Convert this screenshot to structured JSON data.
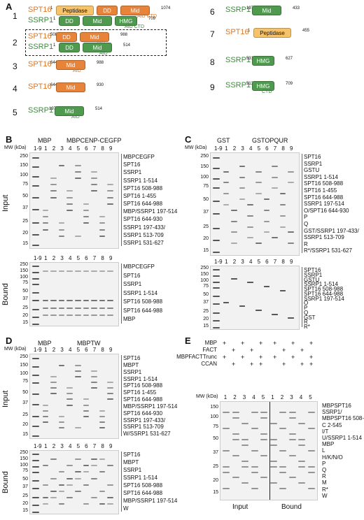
{
  "panels": {
    "a": "A",
    "b": "B",
    "c": "C",
    "d": "D",
    "e": "E"
  },
  "a": {
    "constructs": [
      {
        "n": "1",
        "rows": [
          {
            "name": "SPT16",
            "start": "1",
            "end": "1074",
            "domains": [
              "Peptidase",
              "DD",
              "Mid"
            ],
            "sub": "AID CTD"
          },
          {
            "name": "SSRP1",
            "start": "1",
            "end": "709",
            "domains": [
              "DD",
              "Mid",
              "HMG"
            ],
            "sub": "AID CTD"
          }
        ]
      },
      {
        "n": "2",
        "rows": [
          {
            "name": "SPT16",
            "start": "508",
            "end": "988",
            "domains": [
              "DD",
              "Mid"
            ],
            "sub": "AID"
          },
          {
            "name": "SSRP1",
            "start": "1",
            "end": "514",
            "domains": [
              "DD",
              "Mid"
            ],
            "sub": "AID"
          }
        ]
      },
      {
        "n": "3",
        "rows": [
          {
            "name": "SPT16",
            "start": "644",
            "end": "988",
            "domains": [
              "Mid"
            ],
            "sub": "AID"
          }
        ]
      },
      {
        "n": "4",
        "rows": [
          {
            "name": "SPT16",
            "start": "644",
            "end": "930",
            "domains": [
              "Mid"
            ],
            "sub": ""
          }
        ]
      },
      {
        "n": "5",
        "rows": [
          {
            "name": "SSRP1",
            "start": "197",
            "end": "514",
            "domains": [
              "Mid"
            ],
            "sub": "AID"
          }
        ]
      },
      {
        "n": "6",
        "rows": [
          {
            "name": "SSRP1",
            "start": "197",
            "end": "433",
            "domains": [
              "Mid"
            ],
            "sub": ""
          }
        ]
      },
      {
        "n": "7",
        "rows": [
          {
            "name": "SPT16",
            "start": "1",
            "end": "455",
            "domains": [
              "Peptidase"
            ],
            "sub": ""
          }
        ]
      },
      {
        "n": "8",
        "rows": [
          {
            "name": "SSRP1",
            "start": "531",
            "end": "627",
            "domains": [
              "HMG"
            ],
            "sub": ""
          }
        ]
      },
      {
        "n": "9",
        "rows": [
          {
            "name": "SSRP1",
            "start": "513",
            "end": "709",
            "domains": [
              "HMG"
            ],
            "sub": "CTD"
          }
        ]
      }
    ]
  },
  "gels": {
    "mw": [
      "250",
      "150",
      "100",
      "75",
      "50",
      "37",
      "25",
      "20",
      "15"
    ],
    "lanes": [
      "1-9",
      "1",
      "2",
      "3",
      "4",
      "5",
      "6",
      "7",
      "8",
      "9"
    ],
    "input": "Input",
    "bound": "Bound",
    "mwhead": "MW (kDa)",
    "b": {
      "h1": "MBP",
      "h2": "MBPCENP-CEGFP",
      "input_labels": [
        "MBPCEGFP",
        "SPT16",
        "SSRP1",
        "SSRP1 1-514",
        "SPT16 508-988",
        "SPT16 1-455",
        "SPT16 644-988",
        "MBP/SSRP1 197-514",
        "SPT16 644-930",
        "SSRP1 197-433/",
        "SSRP1 513-709",
        "SSRP1 531-627"
      ],
      "bound_labels": [
        "MBPCEGFP",
        "SPT16",
        "SSRP1",
        "SSRP1 1-514",
        "SPT16 508-988",
        "SPT16 644-988",
        "MBP"
      ]
    },
    "c": {
      "h1": "GST",
      "h2": "GSTOPQUR",
      "input_labels": [
        "SPT16",
        "SSRP1",
        "GSTU",
        "SSRP1 1-514",
        "SPT16 508-988",
        "SPT16 1-455",
        "SPT16 644-988",
        "SSRP1 197-514",
        "O/SPT16 644-930",
        "P",
        "Q",
        "GST/SSRP1 197-433/",
        "SSRP1 513-709",
        "R",
        "R*/SSRP1 531-627"
      ],
      "bound_labels": [
        "SPT16",
        "SSRP1",
        "GSTU",
        "SSRP1 1-514",
        "SPT16 508-988",
        "SPT16 644-988",
        "SSRP1 197-514",
        "O",
        "P",
        "Q",
        "GST",
        "R",
        "R*"
      ]
    },
    "d": {
      "h1": "MBP",
      "h2": "MBPTW",
      "input_labels": [
        "SPT16",
        "MBPT",
        "SSRP1",
        "SSRP1 1-514",
        "SPT16 508-988",
        "SPT16 1-455",
        "SPT16 644-988",
        "MBP/SSRP1 197-514",
        "SPT16 644-930",
        "SSRP1 197-433/",
        "SSRP1 513-709",
        "W/SSRP1 531-627"
      ],
      "bound_labels": [
        "SPT16",
        "MBPT",
        "SSRP1",
        "SSRP1 1-514",
        "SPT16 508-988",
        "SPT16 644-988",
        "MBP/SSRP1 197-514",
        "W"
      ]
    },
    "e": {
      "rows": [
        "MBP",
        "FACT",
        "MBPFACTTrunc",
        "CCAN"
      ],
      "lanes": [
        "1",
        "2",
        "3",
        "4",
        "5",
        "1",
        "2",
        "3",
        "4",
        "5"
      ],
      "labels": [
        "MBPSPT16",
        "SSRP1/",
        "MBPSPT16 508-988",
        "C 2-545",
        "I/T",
        "U/SSRP1 1-514",
        "MBP",
        "L",
        "H/K/N/O",
        "P",
        "Q",
        "R",
        "M",
        "R*",
        "W"
      ],
      "foot1": "Input",
      "foot2": "Bound"
    }
  }
}
